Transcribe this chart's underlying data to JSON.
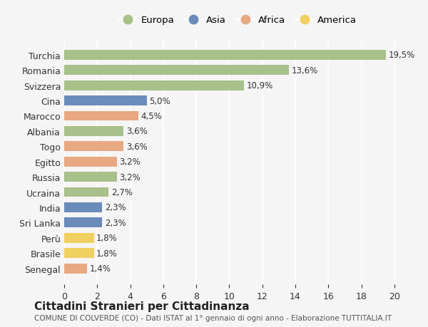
{
  "countries": [
    "Turchia",
    "Romania",
    "Svizzera",
    "Cina",
    "Marocco",
    "Albania",
    "Togo",
    "Egitto",
    "Russia",
    "Ucraina",
    "India",
    "Sri Lanka",
    "Perù",
    "Brasile",
    "Senegal"
  ],
  "values": [
    19.5,
    13.6,
    10.9,
    5.0,
    4.5,
    3.6,
    3.6,
    3.2,
    3.2,
    2.7,
    2.3,
    2.3,
    1.8,
    1.8,
    1.4
  ],
  "labels": [
    "19,5%",
    "13,6%",
    "10,9%",
    "5,0%",
    "4,5%",
    "3,6%",
    "3,6%",
    "3,2%",
    "3,2%",
    "2,7%",
    "2,3%",
    "2,3%",
    "1,8%",
    "1,8%",
    "1,4%"
  ],
  "continents": [
    "Europa",
    "Europa",
    "Europa",
    "Asia",
    "Africa",
    "Europa",
    "Africa",
    "Africa",
    "Europa",
    "Europa",
    "Asia",
    "Asia",
    "America",
    "America",
    "Africa"
  ],
  "continent_colors": {
    "Europa": "#a8c08a",
    "Asia": "#6b8cba",
    "Africa": "#e8a882",
    "America": "#f0d060"
  },
  "legend_order": [
    "Europa",
    "Asia",
    "Africa",
    "America"
  ],
  "bg_color": "#f5f5f5",
  "grid_color": "#ffffff",
  "title": "Cittadini Stranieri per Cittadinanza",
  "subtitle": "COMUNE DI COLVERDE (CO) - Dati ISTAT al 1° gennaio di ogni anno - Elaborazione TUTTITALIA.IT",
  "xlim": [
    0,
    21
  ],
  "xticks": [
    0,
    2,
    4,
    6,
    8,
    10,
    12,
    14,
    16,
    18,
    20
  ]
}
